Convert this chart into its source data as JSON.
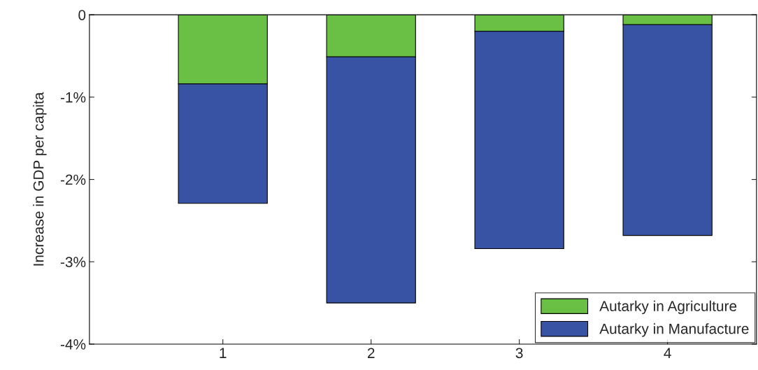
{
  "chart_data": {
    "type": "bar",
    "stacked": true,
    "ylabel": "Increase in GDP per capita",
    "categories": [
      "1",
      "2",
      "3",
      "4"
    ],
    "series": [
      {
        "name": "Autarky in Agriculture",
        "color": "#6abf45",
        "values": [
          -0.84,
          -0.51,
          -0.2,
          -0.12
        ]
      },
      {
        "name": "Autarky in Manufacture",
        "color": "#3953a4",
        "values": [
          -1.45,
          -2.99,
          -2.64,
          -2.56
        ]
      }
    ],
    "ylim": [
      -4,
      0
    ],
    "yticks": [
      {
        "value": -4,
        "label": "-4%"
      },
      {
        "value": -3,
        "label": "-3%"
      },
      {
        "value": -2,
        "label": "-2%"
      },
      {
        "value": -1,
        "label": "-1%"
      },
      0
    ],
    "grid": false,
    "legend": "bottom right"
  }
}
